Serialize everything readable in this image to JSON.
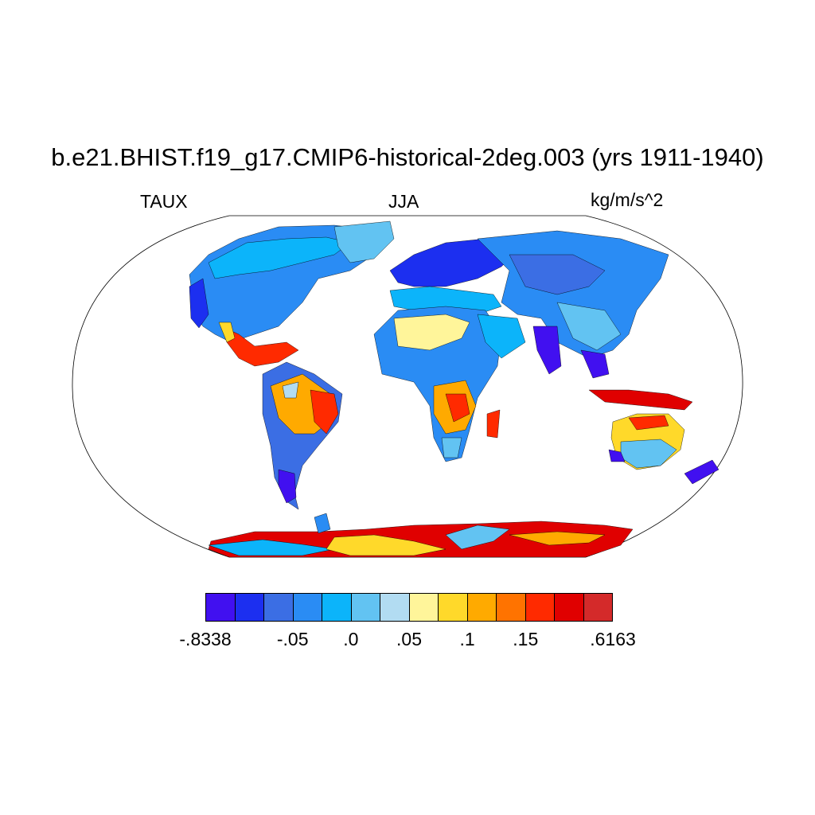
{
  "plot": {
    "title": "b.e21.BHIST.f19_g17.CMIP6-historical-2deg.003 (yrs 1911-1940)",
    "variable": "TAUX",
    "season": "JJA",
    "units": "kg/m/s^2"
  },
  "projection": "robinson",
  "colorbar": {
    "colors": [
      "#4110f0",
      "#1c2ff0",
      "#3b6ee4",
      "#2a8cf4",
      "#0cb4fa",
      "#62c3f2",
      "#b2dcf2",
      "#fff59a",
      "#ffd92a",
      "#ffaa00",
      "#ff7300",
      "#ff2a00",
      "#e00000",
      "#d42a2a"
    ],
    "labels": [
      "-.8338",
      "-.05",
      ".0",
      ".05",
      ".1",
      ".15",
      ".6163"
    ],
    "label_boundaries": [
      0,
      3,
      5,
      7,
      9,
      11,
      14
    ]
  }
}
